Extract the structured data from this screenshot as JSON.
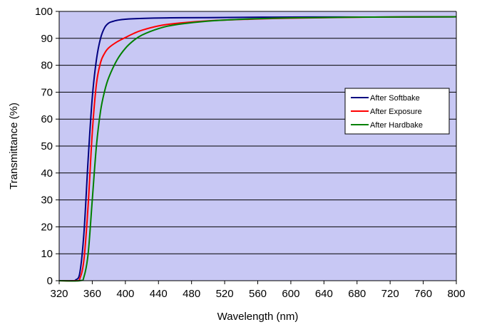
{
  "chart_data": {
    "type": "line",
    "title": "",
    "xlabel": "Wavelength (nm)",
    "ylabel": "Transmittance (%)",
    "xlim": [
      320,
      800
    ],
    "ylim": [
      0,
      100
    ],
    "x_ticks": [
      320,
      360,
      400,
      440,
      480,
      520,
      560,
      600,
      640,
      680,
      720,
      760,
      800
    ],
    "y_ticks": [
      0,
      10,
      20,
      30,
      40,
      50,
      60,
      70,
      80,
      90,
      100
    ],
    "grid": "horizontal",
    "legend_position": "right",
    "plot_background": "#c8c8f4",
    "series": [
      {
        "name": "After Softbake",
        "color": "#000080",
        "x": [
          320,
          335,
          340,
          345,
          350,
          355,
          360,
          365,
          370,
          375,
          380,
          385,
          390,
          400,
          420,
          450,
          500,
          600,
          700,
          800
        ],
        "y": [
          0,
          0,
          0.3,
          3,
          18,
          45,
          68,
          82,
          90,
          94,
          95.7,
          96.3,
          96.7,
          97.1,
          97.4,
          97.6,
          97.7,
          97.9,
          97.9,
          98.0
        ]
      },
      {
        "name": "After Exposure",
        "color": "#ff0000",
        "x": [
          320,
          340,
          345,
          350,
          355,
          360,
          365,
          370,
          375,
          380,
          390,
          400,
          410,
          420,
          440,
          460,
          500,
          550,
          600,
          700,
          800
        ],
        "y": [
          0,
          0,
          0.8,
          8,
          28,
          55,
          73,
          81,
          84.5,
          86.5,
          88.7,
          90.3,
          91.8,
          93.0,
          94.6,
          95.5,
          96.5,
          97.1,
          97.5,
          97.9,
          98.0
        ]
      },
      {
        "name": "After Hardbake",
        "color": "#008000",
        "x": [
          320,
          345,
          350,
          355,
          360,
          365,
          370,
          375,
          380,
          390,
          400,
          410,
          420,
          440,
          460,
          500,
          550,
          600,
          700,
          800
        ],
        "y": [
          0,
          0,
          1.5,
          10,
          30,
          50,
          63,
          70.5,
          75.5,
          82,
          86.3,
          89.2,
          91.2,
          93.6,
          95.0,
          96.4,
          97.2,
          97.6,
          97.9,
          98.0
        ]
      }
    ]
  }
}
